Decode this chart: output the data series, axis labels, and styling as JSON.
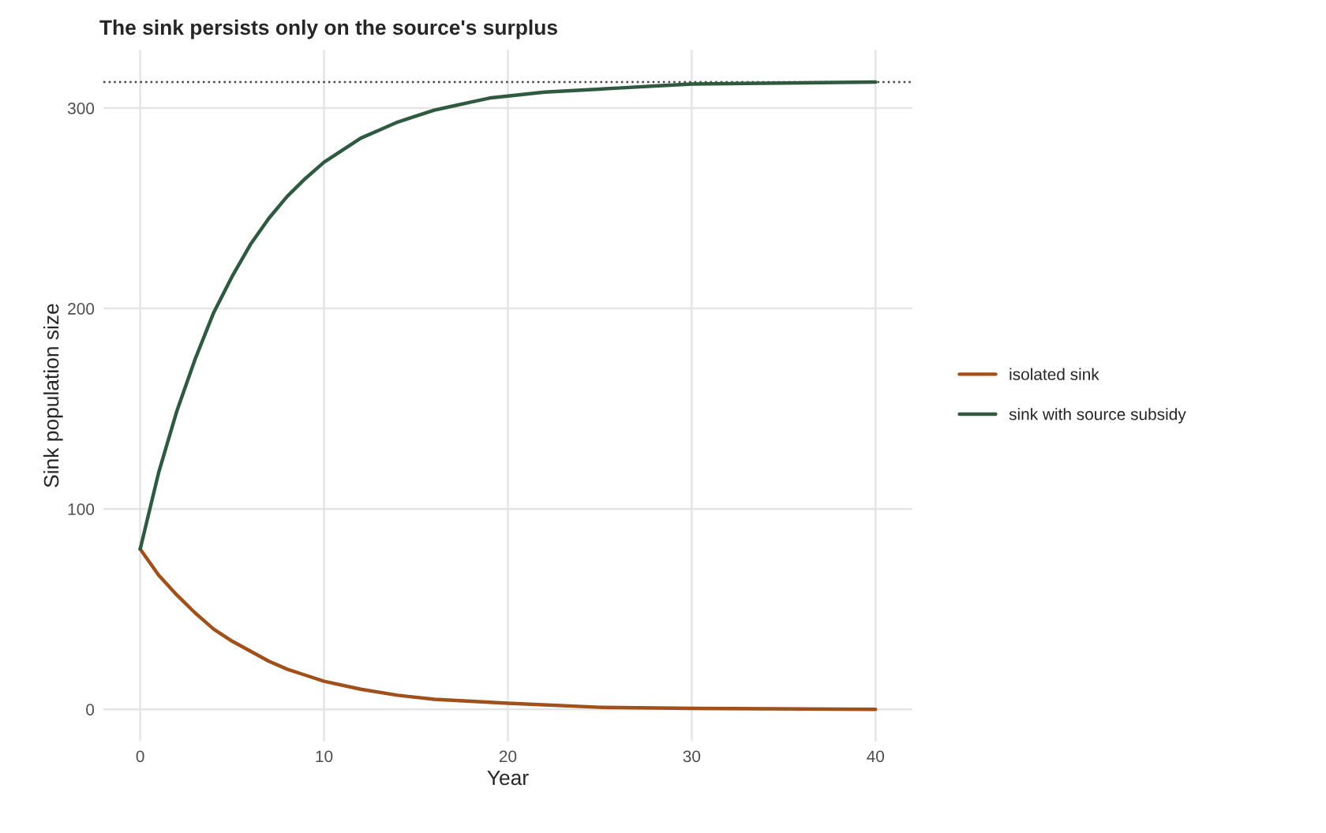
{
  "chart_data": {
    "type": "line",
    "title": "The sink persists only on the source's surplus",
    "xlabel": "Year",
    "ylabel": "Sink population size",
    "series": [
      {
        "name": "isolated sink",
        "color": "#a0501a",
        "x": [
          0,
          1,
          2,
          3,
          4,
          5,
          6,
          7,
          8,
          9,
          10,
          12,
          14,
          16,
          18,
          20,
          25,
          30,
          40
        ],
        "values": [
          80,
          67,
          57,
          48,
          40,
          34,
          29,
          24,
          20,
          17,
          14,
          10,
          7,
          5,
          4,
          3,
          1,
          0.5,
          0
        ]
      },
      {
        "name": "sink with source subsidy",
        "color": "#2f5a40",
        "x": [
          0,
          1,
          2,
          3,
          4,
          5,
          6,
          7,
          8,
          9,
          10,
          11,
          12,
          13,
          14,
          15,
          16,
          17,
          18,
          19,
          20,
          22,
          24,
          26,
          28,
          30,
          35,
          40
        ],
        "values": [
          80,
          118,
          149,
          175,
          198,
          216,
          232,
          245,
          256,
          265,
          273,
          279,
          285,
          289,
          293,
          296,
          299,
          301,
          303,
          305,
          306,
          308,
          309,
          310,
          311,
          312,
          312.5,
          313
        ]
      }
    ],
    "xlim": [
      -2,
      42
    ],
    "xticks": [
      0,
      10,
      20,
      30,
      40
    ],
    "ylim": [
      -16,
      329
    ],
    "yticks": [
      0,
      100,
      200,
      300
    ],
    "ref_lines": [
      {
        "axis": "y",
        "value": 313,
        "color": "#444444",
        "line_style": "dotted"
      }
    ],
    "grid": true,
    "legend": "right",
    "line_style": "solid",
    "marker": "none"
  }
}
